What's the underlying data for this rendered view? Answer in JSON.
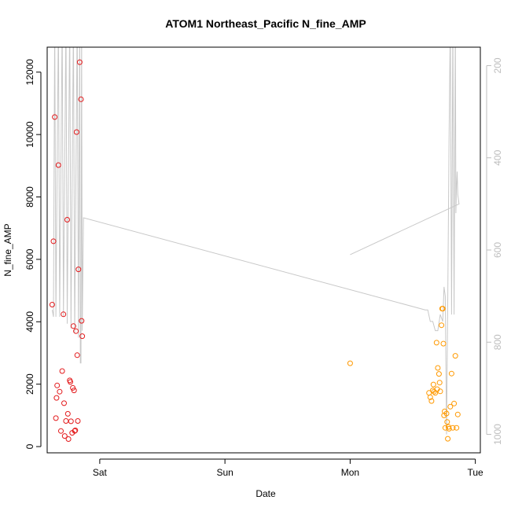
{
  "chart_data": {
    "type": "scatter",
    "title": "ATOM1 Northeast_Pacific N_fine_AMP",
    "xlabel": "Date",
    "ylabel": "N_fine_AMP",
    "x_ticks": [
      "Sat",
      "Sun",
      "Mon",
      "Tue"
    ],
    "x_range_days": [
      -0.42,
      0.05
    ],
    "xlim": [
      -0.42,
      3.04
    ],
    "ylim": [
      -200,
      12800
    ],
    "y_ticks": [
      0,
      2000,
      4000,
      6000,
      8000,
      10000,
      12000
    ],
    "y2lim": [
      1040,
      160
    ],
    "y2_ticks": [
      200,
      400,
      600,
      800,
      1000
    ],
    "series": [
      {
        "color": "#e31a1c",
        "points": [
          [
            -0.38,
            4550
          ],
          [
            -0.37,
            6580
          ],
          [
            -0.36,
            10560
          ],
          [
            -0.35,
            910
          ],
          [
            -0.345,
            1560
          ],
          [
            -0.34,
            1960
          ],
          [
            -0.33,
            9020
          ],
          [
            -0.32,
            1760
          ],
          [
            -0.31,
            500
          ],
          [
            -0.3,
            2420
          ],
          [
            -0.29,
            4240
          ],
          [
            -0.285,
            1390
          ],
          [
            -0.28,
            340
          ],
          [
            -0.27,
            820
          ],
          [
            -0.26,
            7270
          ],
          [
            -0.255,
            1050
          ],
          [
            -0.25,
            240
          ],
          [
            -0.24,
            2120
          ],
          [
            -0.235,
            2070
          ],
          [
            -0.23,
            810
          ],
          [
            -0.22,
            440
          ],
          [
            -0.215,
            1880
          ],
          [
            -0.21,
            3860
          ],
          [
            -0.205,
            1800
          ],
          [
            -0.2,
            500
          ],
          [
            -0.195,
            520
          ],
          [
            -0.19,
            3700
          ],
          [
            -0.185,
            10080
          ],
          [
            -0.18,
            2930
          ],
          [
            -0.175,
            820
          ],
          [
            -0.17,
            5680
          ],
          [
            -0.16,
            12320
          ],
          [
            -0.15,
            11130
          ],
          [
            -0.145,
            4030
          ],
          [
            -0.14,
            3540
          ]
        ]
      },
      {
        "color": "#ff9900",
        "points": [
          [
            2.0,
            2670
          ],
          [
            2.63,
            1720
          ],
          [
            2.64,
            1580
          ],
          [
            2.65,
            1460
          ],
          [
            2.66,
            1800
          ],
          [
            2.665,
            1990
          ],
          [
            2.67,
            1760
          ],
          [
            2.68,
            1720
          ],
          [
            2.69,
            3330
          ],
          [
            2.695,
            1840
          ],
          [
            2.7,
            2520
          ],
          [
            2.71,
            2330
          ],
          [
            2.715,
            2050
          ],
          [
            2.72,
            1770
          ],
          [
            2.73,
            3890
          ],
          [
            2.735,
            4420
          ],
          [
            2.74,
            4420
          ],
          [
            2.745,
            3300
          ],
          [
            2.75,
            1000
          ],
          [
            2.755,
            1130
          ],
          [
            2.76,
            600
          ],
          [
            2.77,
            1060
          ],
          [
            2.775,
            790
          ],
          [
            2.78,
            250
          ],
          [
            2.785,
            630
          ],
          [
            2.79,
            570
          ],
          [
            2.8,
            1280
          ],
          [
            2.81,
            2340
          ],
          [
            2.82,
            600
          ],
          [
            2.83,
            1380
          ],
          [
            2.84,
            2910
          ],
          [
            2.85,
            600
          ],
          [
            2.86,
            1030
          ]
        ]
      }
    ],
    "line": {
      "color": "#c8c8c8",
      "axis": "right",
      "points": [
        [
          -0.38,
          730
        ],
        [
          -0.37,
          745
        ],
        [
          -0.36,
          100
        ],
        [
          -0.35,
          745
        ],
        [
          -0.33,
          100
        ],
        [
          -0.32,
          745
        ],
        [
          -0.3,
          100
        ],
        [
          -0.29,
          745
        ],
        [
          -0.27,
          100
        ],
        [
          -0.26,
          760
        ],
        [
          -0.24,
          100
        ],
        [
          -0.23,
          770
        ],
        [
          -0.21,
          100
        ],
        [
          -0.2,
          780
        ],
        [
          -0.18,
          100
        ],
        [
          -0.17,
          790
        ],
        [
          -0.16,
          100
        ],
        [
          -0.155,
          845
        ],
        [
          -0.15,
          845
        ],
        [
          -0.145,
          100
        ],
        [
          -0.14,
          775
        ],
        [
          -0.13,
          530
        ],
        [
          2.6,
          730
        ],
        [
          2.62,
          730
        ],
        [
          2.64,
          755
        ],
        [
          2.66,
          755
        ],
        [
          2.68,
          775
        ],
        [
          2.7,
          775
        ],
        [
          2.72,
          740
        ],
        [
          2.74,
          755
        ],
        [
          2.75,
          680
        ],
        [
          2.76,
          700
        ],
        [
          2.77,
          1000
        ],
        [
          2.78,
          700
        ],
        [
          2.79,
          360
        ],
        [
          2.8,
          100
        ],
        [
          2.81,
          740
        ],
        [
          2.82,
          100
        ],
        [
          2.83,
          740
        ],
        [
          2.84,
          100
        ],
        [
          2.845,
          520
        ],
        [
          2.85,
          460
        ],
        [
          2.855,
          430
        ],
        [
          2.86,
          480
        ],
        [
          2.87,
          500
        ],
        [
          2.0,
          610
        ],
        [
          2.87,
          500
        ]
      ]
    }
  }
}
